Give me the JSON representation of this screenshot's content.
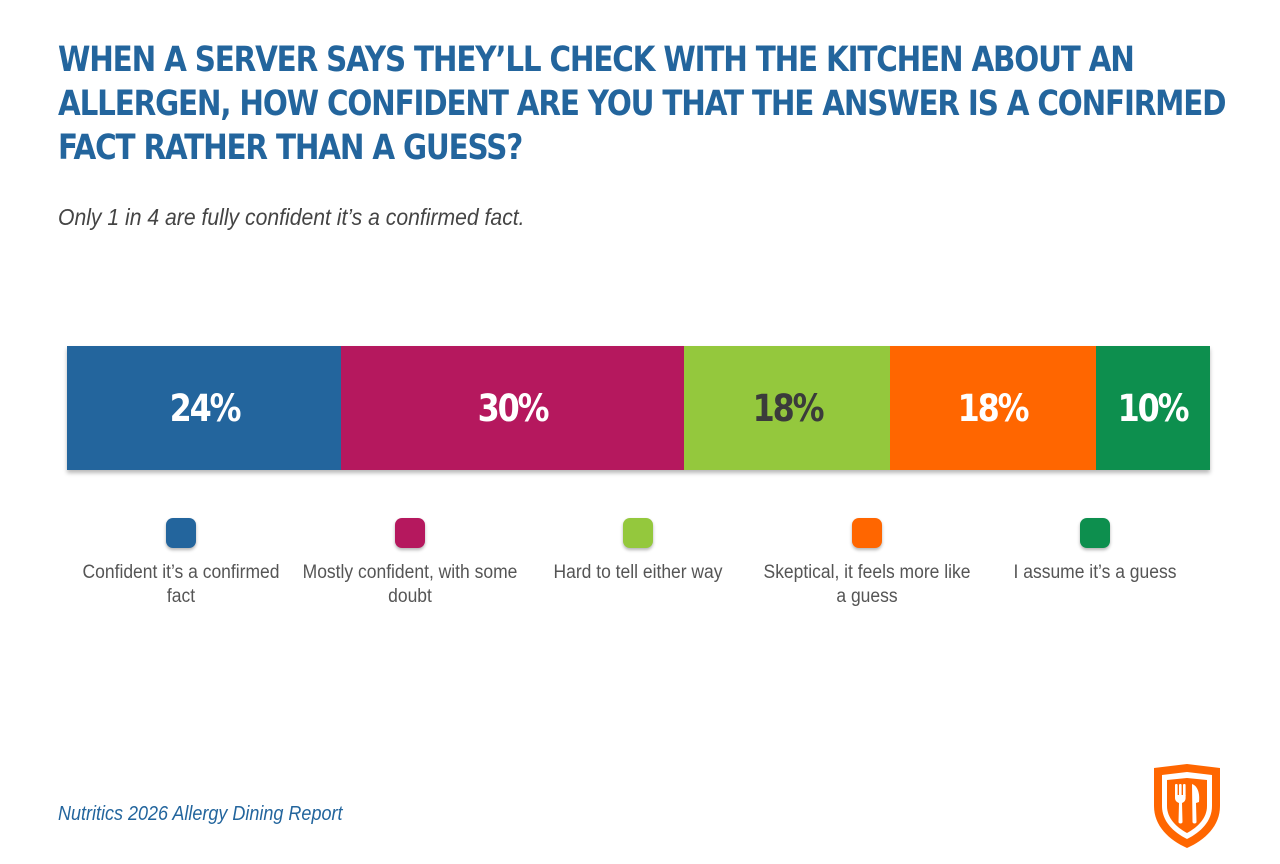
{
  "title": "WHEN A SERVER SAYS THEY’LL CHECK WITH THE KITCHEN ABOUT AN ALLERGEN, HOW CONFIDENT ARE YOU THAT THE ANSWER IS A CONFIRMED FACT RATHER THAN A GUESS?",
  "subtitle": "Only 1 in 4 are fully confident it’s a confirmed fact.",
  "footer": "Nutritics 2026 Allergy Dining Report",
  "logo_icon": "fork-knife-shield-icon",
  "colors": {
    "title": "#23659d",
    "logo": "#ff6600"
  },
  "chart_data": {
    "type": "bar",
    "orientation": "horizontal-stacked-100",
    "legend_position": "bottom",
    "grid": false,
    "xlim": [
      0,
      100
    ],
    "categories": [
      "Confident it’s a confirmed fact",
      "Mostly confident, with some doubt",
      "Hard to tell either way",
      "Skeptical, it feels more like a guess",
      "I assume it’s a guess"
    ],
    "values": [
      24,
      30,
      18,
      18,
      10
    ],
    "labels": [
      "24%",
      "30%",
      "18%",
      "18%",
      "10%"
    ],
    "colors": [
      "#23659d",
      "#b5185e",
      "#94c83d",
      "#ff6600",
      "#0d8f4e"
    ],
    "label_colors": [
      "#ffffff",
      "#ffffff",
      "#3b3b3b",
      "#ffffff",
      "#ffffff"
    ]
  }
}
